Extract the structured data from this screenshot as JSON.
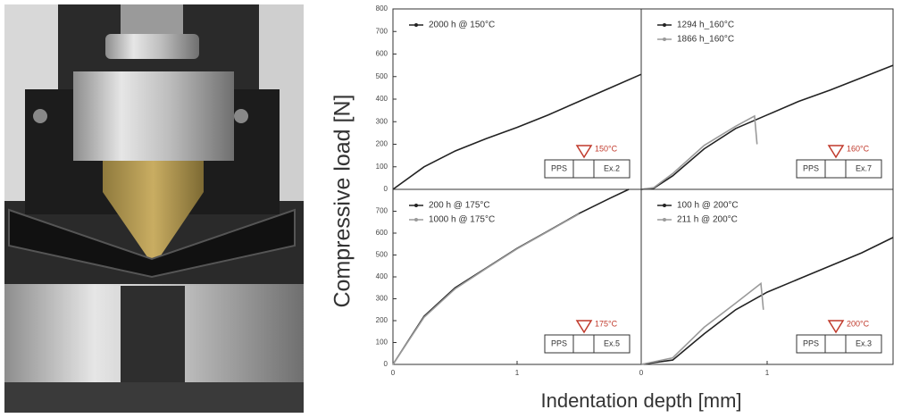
{
  "figure": {
    "y_label": "Compressive load [N]",
    "x_label": "Indentation depth [mm]"
  },
  "chart_data": [
    {
      "type": "line",
      "xlim": [
        0,
        2
      ],
      "ylim": [
        0,
        800
      ],
      "yticks": [
        0,
        100,
        200,
        300,
        400,
        500,
        600,
        700,
        800
      ],
      "series": [
        {
          "name": "2000 h @ 150°C",
          "color": "#222222",
          "x": [
            0,
            0.25,
            0.5,
            0.75,
            1,
            1.25,
            1.5,
            1.75,
            2
          ],
          "values": [
            0,
            100,
            170,
            225,
            275,
            330,
            390,
            450,
            510
          ]
        }
      ],
      "inset": {
        "temperature": "150°C",
        "material": "PPS",
        "label": "Ex.2"
      }
    },
    {
      "type": "line",
      "xlim": [
        0,
        2
      ],
      "ylim": [
        0,
        800
      ],
      "series": [
        {
          "name": "1294 h_160°C",
          "color": "#222222",
          "x": [
            0,
            0.1,
            0.25,
            0.5,
            0.75,
            1,
            1.25,
            1.5,
            1.75,
            2
          ],
          "values": [
            0,
            5,
            60,
            180,
            270,
            330,
            390,
            440,
            495,
            550
          ]
        },
        {
          "name": "1866 h_160°C",
          "color": "#9a9a9a",
          "x": [
            0,
            0.1,
            0.25,
            0.5,
            0.75,
            0.9,
            0.92
          ],
          "values": [
            0,
            8,
            70,
            195,
            280,
            325,
            200
          ]
        }
      ],
      "inset": {
        "temperature": "160°C",
        "material": "PPS",
        "label": "Ex.7"
      }
    },
    {
      "type": "line",
      "xlim": [
        0,
        2
      ],
      "ylim": [
        0,
        800
      ],
      "xticks": [
        0,
        1
      ],
      "yticks": [
        0,
        100,
        200,
        300,
        400,
        500,
        600,
        700
      ],
      "series": [
        {
          "name": "200 h @ 175°C",
          "color": "#222222",
          "x": [
            0,
            0.25,
            0.5,
            0.75,
            1,
            1.25,
            1.5,
            1.75,
            1.9
          ],
          "values": [
            0,
            220,
            350,
            440,
            530,
            610,
            690,
            760,
            800
          ]
        },
        {
          "name": "1000 h @ 175°C",
          "color": "#9a9a9a",
          "x": [
            0,
            0.25,
            0.5,
            0.75,
            1,
            1.25,
            1.5
          ],
          "values": [
            0,
            215,
            345,
            438,
            528,
            608,
            688
          ]
        }
      ],
      "inset": {
        "temperature": "175°C",
        "material": "PPS",
        "label": "Ex.5"
      }
    },
    {
      "type": "line",
      "xlim": [
        0,
        2
      ],
      "ylim": [
        0,
        800
      ],
      "xticks": [
        0,
        1
      ],
      "series": [
        {
          "name": "100 h @ 200°C",
          "color": "#222222",
          "x": [
            0,
            0.25,
            0.5,
            0.75,
            1,
            1.25,
            1.5,
            1.75,
            2
          ],
          "values": [
            0,
            20,
            140,
            250,
            330,
            390,
            450,
            510,
            580
          ]
        },
        {
          "name": "211 h @ 200°C",
          "color": "#9a9a9a",
          "x": [
            0,
            0.25,
            0.5,
            0.75,
            0.95,
            0.97
          ],
          "values": [
            0,
            30,
            170,
            280,
            370,
            250
          ]
        }
      ],
      "inset": {
        "temperature": "200°C",
        "material": "PPS",
        "label": "Ex.3"
      }
    }
  ]
}
